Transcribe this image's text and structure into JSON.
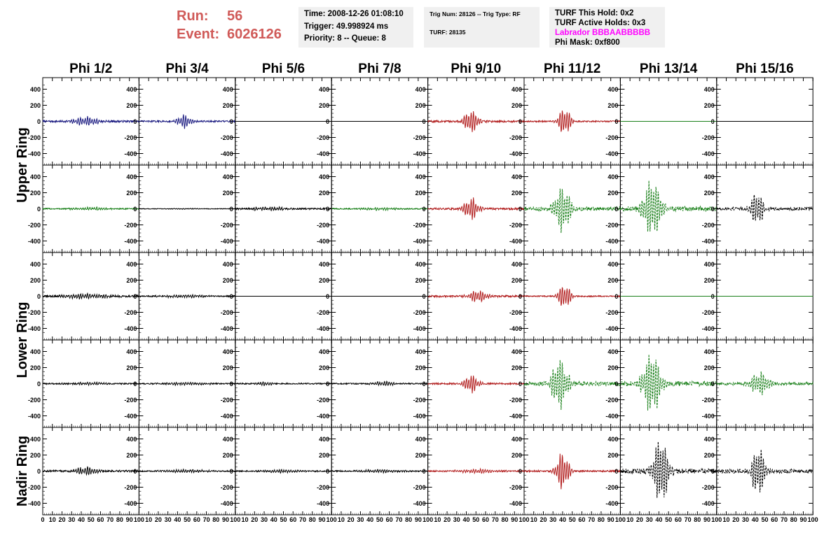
{
  "header": {
    "run_label": "Run:",
    "run_value": "56",
    "event_label": "Event:",
    "event_value": "6026126",
    "time": "Time: 2008-12-26 01:08:10",
    "trigger": "Trigger: 49.998924 ms",
    "priority": "Priority: 8 -- Queue: 8",
    "trig_num": "Trig Num: 28126 -- Trig Type: RF",
    "turf": "TURF: 28135",
    "turf_this_hold": "TURF This Hold: 0x2",
    "turf_active_holds": "TURF Active Holds: 0x3",
    "labrador": "Labrador BBBAABBBBB",
    "phi_mask": "Phi Mask: 0xf800"
  },
  "chart_data": {
    "type": "line",
    "columns": [
      "Phi 1/2",
      "Phi 3/4",
      "Phi 5/6",
      "Phi 7/8",
      "Phi 9/10",
      "Phi 11/12",
      "Phi 13/14",
      "Phi 15/16"
    ],
    "ring_labels": [
      "Upper Ring",
      "Lower Ring",
      "Nadir Ring"
    ],
    "xlim": [
      0,
      100
    ],
    "ylim": [
      -500,
      500
    ],
    "x_ticks": [
      0,
      10,
      20,
      30,
      40,
      50,
      60,
      70,
      80,
      90,
      100
    ],
    "x_tick_labels": [
      "0",
      "10",
      "20",
      "30",
      "40",
      "50",
      "60",
      "70",
      "80",
      "90",
      "100"
    ],
    "y_ticks": [
      -400,
      -200,
      0,
      200,
      400
    ],
    "y_tick_labels": [
      "-400",
      "-200",
      "0",
      "200",
      "400"
    ],
    "colors": {
      "blue": "#1a1a80",
      "red": "#b21e1e",
      "green": "#1a801a",
      "black": "#000000"
    },
    "rows": [
      [
        {
          "color": "blue",
          "style": "solid",
          "amp": 60,
          "center": 45,
          "width": 14,
          "noise": 12
        },
        {
          "color": "blue",
          "style": "solid",
          "amp": 90,
          "center": 47,
          "width": 8,
          "noise": 10
        },
        {
          "color": "black",
          "style": "solid",
          "amp": 0,
          "center": 50,
          "width": 10,
          "noise": 0
        },
        {
          "color": "black",
          "style": "solid",
          "amp": 0,
          "center": 50,
          "width": 10,
          "noise": 0
        },
        {
          "color": "red",
          "style": "solid",
          "amp": 145,
          "center": 45,
          "width": 8,
          "noise": 12
        },
        {
          "color": "red",
          "style": "solid",
          "amp": 175,
          "center": 42,
          "width": 7,
          "noise": 8
        },
        {
          "color": "green",
          "style": "solid",
          "amp": 0,
          "center": 50,
          "width": 10,
          "noise": 0
        },
        {
          "color": "black",
          "style": "solid",
          "amp": 0,
          "center": 50,
          "width": 10,
          "noise": 0
        }
      ],
      [
        {
          "color": "green",
          "style": "solid",
          "amp": 18,
          "center": 50,
          "width": 20,
          "noise": 8
        },
        {
          "color": "black",
          "style": "solid",
          "amp": 6,
          "center": 50,
          "width": 20,
          "noise": 4
        },
        {
          "color": "black",
          "style": "solid",
          "amp": 22,
          "center": 35,
          "width": 20,
          "noise": 10
        },
        {
          "color": "green",
          "style": "solid",
          "amp": 15,
          "center": 50,
          "width": 20,
          "noise": 8
        },
        {
          "color": "red",
          "style": "solid",
          "amp": 145,
          "center": 45,
          "width": 8,
          "noise": 12
        },
        {
          "color": "green",
          "style": "dashed",
          "amp": 300,
          "center": 40,
          "width": 9,
          "noise": 25
        },
        {
          "color": "green",
          "style": "dashed",
          "amp": 380,
          "center": 33,
          "width": 10,
          "noise": 30
        },
        {
          "color": "black",
          "style": "dashed",
          "amp": 230,
          "center": 42,
          "width": 7,
          "noise": 20
        }
      ],
      [
        {
          "color": "black",
          "style": "solid",
          "amp": 30,
          "center": 45,
          "width": 25,
          "noise": 12
        },
        {
          "color": "black",
          "style": "solid",
          "amp": 18,
          "center": 45,
          "width": 25,
          "noise": 8
        },
        {
          "color": "black",
          "style": "solid",
          "amp": 0,
          "center": 50,
          "width": 10,
          "noise": 0
        },
        {
          "color": "black",
          "style": "solid",
          "amp": 0,
          "center": 50,
          "width": 10,
          "noise": 0
        },
        {
          "color": "red",
          "style": "solid",
          "amp": 80,
          "center": 52,
          "width": 10,
          "noise": 12
        },
        {
          "color": "red",
          "style": "solid",
          "amp": 160,
          "center": 42,
          "width": 7,
          "noise": 8
        },
        {
          "color": "green",
          "style": "solid",
          "amp": 0,
          "center": 50,
          "width": 10,
          "noise": 0
        },
        {
          "color": "green",
          "style": "solid",
          "amp": 0,
          "center": 50,
          "width": 10,
          "noise": 0
        }
      ],
      [
        {
          "color": "black",
          "style": "solid",
          "amp": 15,
          "center": 50,
          "width": 25,
          "noise": 8
        },
        {
          "color": "black",
          "style": "solid",
          "amp": 18,
          "center": 50,
          "width": 25,
          "noise": 8
        },
        {
          "color": "black",
          "style": "solid",
          "amp": 25,
          "center": 30,
          "width": 10,
          "noise": 8
        },
        {
          "color": "black",
          "style": "solid",
          "amp": 30,
          "center": 55,
          "width": 12,
          "noise": 8
        },
        {
          "color": "red",
          "style": "solid",
          "amp": 120,
          "center": 45,
          "width": 8,
          "noise": 10
        },
        {
          "color": "green",
          "style": "dashed",
          "amp": 330,
          "center": 37,
          "width": 9,
          "noise": 25
        },
        {
          "color": "green",
          "style": "dashed",
          "amp": 400,
          "center": 33,
          "width": 10,
          "noise": 30
        },
        {
          "color": "green",
          "style": "dashed",
          "amp": 150,
          "center": 45,
          "width": 10,
          "noise": 18
        }
      ],
      [
        {
          "color": "black",
          "style": "solid",
          "amp": 55,
          "center": 45,
          "width": 12,
          "noise": 12
        },
        {
          "color": "black",
          "style": "solid",
          "amp": 18,
          "center": 50,
          "width": 25,
          "noise": 8
        },
        {
          "color": "black",
          "style": "solid",
          "amp": 18,
          "center": 50,
          "width": 25,
          "noise": 8
        },
        {
          "color": "black",
          "style": "solid",
          "amp": 20,
          "center": 50,
          "width": 25,
          "noise": 8
        },
        {
          "color": "red",
          "style": "solid",
          "amp": 25,
          "center": 50,
          "width": 25,
          "noise": 8
        },
        {
          "color": "red",
          "style": "solid",
          "amp": 250,
          "center": 40,
          "width": 7,
          "noise": 10
        },
        {
          "color": "black",
          "style": "dashed",
          "amp": 450,
          "center": 42,
          "width": 8,
          "noise": 30
        },
        {
          "color": "black",
          "style": "dashed",
          "amp": 340,
          "center": 43,
          "width": 7,
          "noise": 25
        }
      ]
    ]
  }
}
